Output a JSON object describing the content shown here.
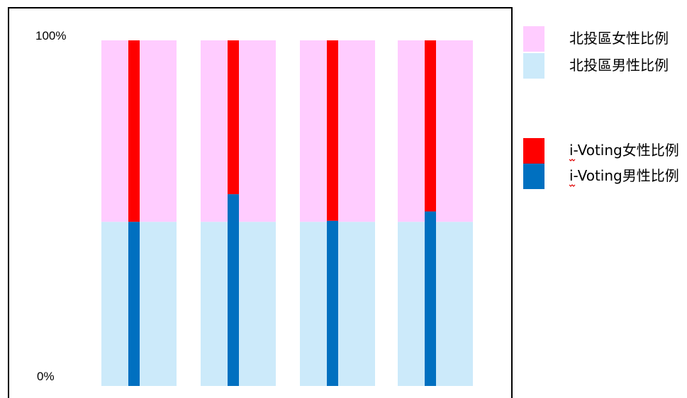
{
  "chart_data": {
    "type": "bar",
    "title": "",
    "xlabel": "",
    "ylabel": "",
    "ylim": [
      0,
      100
    ],
    "y_tick_labels": [
      "100%",
      "0%"
    ],
    "categories": [
      "",
      "",
      "",
      ""
    ],
    "background_series": [
      {
        "name": "北投區男性比例",
        "color": "#cceafa",
        "values": [
          47.5,
          47.5,
          47.5,
          47.5
        ]
      },
      {
        "name": "北投區女性比例",
        "color": "#ffccff",
        "values": [
          52.5,
          52.5,
          52.5,
          52.5
        ]
      }
    ],
    "overlay_series": [
      {
        "name": "i-Voting男性比例",
        "color": "#0070c0",
        "values": [
          47.5,
          55.5,
          47.8,
          50.5
        ]
      },
      {
        "name": "i-Voting女性比例",
        "color": "#ff0000",
        "values": [
          52.5,
          44.5,
          52.2,
          49.5
        ]
      }
    ],
    "legend": {
      "placement": "right",
      "items": [
        {
          "label": "北投區女性比例",
          "color": "#ffccff"
        },
        {
          "label": "北投區男性比例",
          "color": "#cceafa"
        },
        {
          "label": "i-Voting女性比例",
          "color": "#ff0000"
        },
        {
          "label": "i-Voting男性比例",
          "color": "#0070c0"
        }
      ]
    },
    "grid": false
  }
}
